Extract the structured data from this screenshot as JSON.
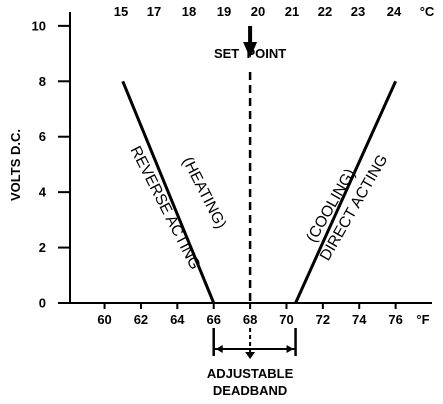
{
  "chart_data": {
    "type": "line",
    "title": "",
    "ylabel": "VOLTS D.C.",
    "xlabel": "",
    "y_ticks": [
      0,
      2,
      4,
      6,
      8,
      10
    ],
    "bottom_axis": {
      "unit": "°F",
      "ticks": [
        60,
        62,
        64,
        66,
        68,
        70,
        72,
        74,
        76
      ],
      "range": [
        58.1,
        78.0
      ]
    },
    "top_axis": {
      "unit": "°C",
      "ticks": [
        15,
        17,
        18,
        19,
        20,
        21,
        22,
        23,
        24
      ]
    },
    "ylim": [
      0,
      10.5
    ],
    "series": [
      {
        "points": [
          [
            61,
            8
          ],
          [
            66,
            0
          ]
        ]
      },
      {
        "points": [
          [
            70.5,
            0
          ],
          [
            76,
            8
          ]
        ]
      }
    ],
    "setpoint_x": 68,
    "deadband": [
      66,
      70.5
    ],
    "grid": false
  },
  "annotations": {
    "set_point": "SET  POINT",
    "heating": "(HEATING)",
    "reverse": "REVERSE ACTING",
    "cooling": "(COOLING)",
    "direct": "DIRECT ACTING",
    "deadband_line1": "ADJUSTABLE",
    "deadband_line2": "DEADBAND"
  }
}
